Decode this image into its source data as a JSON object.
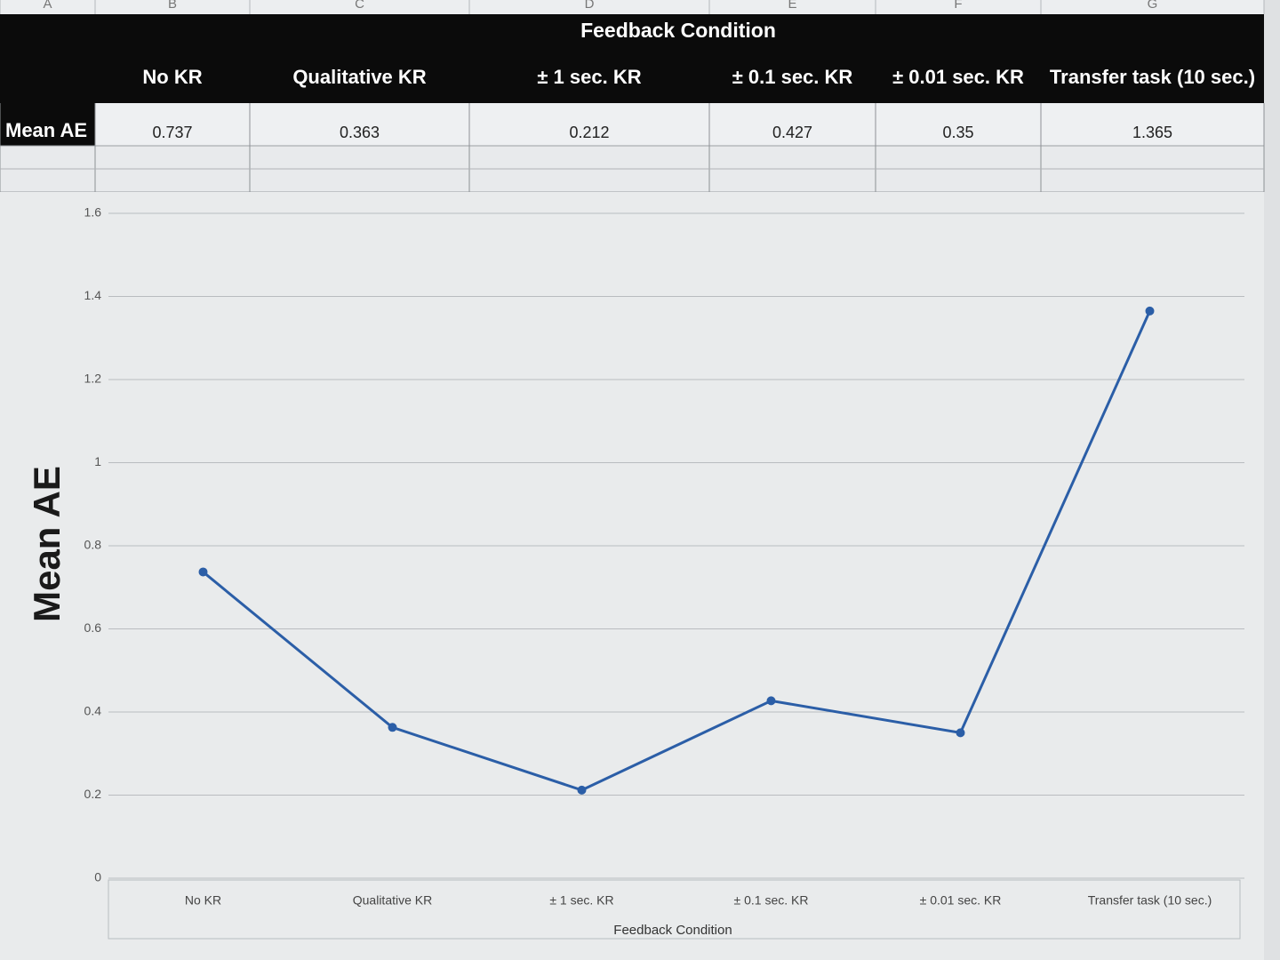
{
  "sheet": {
    "column_letters": [
      "A",
      "B",
      "C",
      "D",
      "E",
      "F",
      "G"
    ],
    "group_header": "Feedback Condition",
    "columns": [
      "No KR",
      "Qualitative KR",
      "± 1 sec. KR",
      "± 0.1 sec. KR",
      "± 0.01 sec. KR",
      "Transfer task (10 sec.)"
    ],
    "row_label": "Mean AE",
    "row_values": [
      0.737,
      0.363,
      0.212,
      0.427,
      0.35,
      1.365
    ]
  },
  "chart_data": {
    "type": "line",
    "y_label": "Mean AE",
    "x_label": "Feedback Condition",
    "categories": [
      "No KR",
      "Qualitative KR",
      "± 1 sec. KR",
      "± 0.1 sec. KR",
      "± 0.01 sec. KR",
      "Transfer task (10 sec.)"
    ],
    "values": [
      0.737,
      0.363,
      0.212,
      0.427,
      0.35,
      1.365
    ],
    "color": "#2b5ea7",
    "ylim": [
      0,
      1.6
    ],
    "yticks": [
      0,
      0.2,
      0.4,
      0.6,
      0.8,
      1,
      1.2,
      1.4,
      1.6
    ],
    "grid": true
  }
}
